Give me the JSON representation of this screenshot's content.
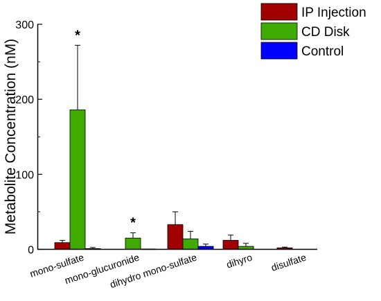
{
  "chart_data": {
    "type": "bar",
    "title": "",
    "xlabel": "",
    "ylabel": "Metabolite Concentration (nM)",
    "ylim": [
      0,
      300
    ],
    "yticks": [
      0,
      100,
      200,
      300
    ],
    "grid": false,
    "legend_position": "top-right",
    "categories": [
      "mono-sulfate",
      "mono-glucuronide",
      "dihydro mono-sulfate",
      "dihyro",
      "disulfate"
    ],
    "series": [
      {
        "name": "IP Injection",
        "color": "#a00000",
        "values": [
          9,
          0,
          33,
          12,
          2
        ],
        "errors": [
          3,
          0,
          17,
          7,
          1
        ]
      },
      {
        "name": "CD Disk",
        "color": "#3faa00",
        "values": [
          186,
          15,
          14,
          4,
          0
        ],
        "errors": [
          86,
          7,
          10,
          4,
          0
        ]
      },
      {
        "name": "Control",
        "color": "#0000ff",
        "values": [
          1,
          0.5,
          4,
          0,
          0
        ],
        "errors": [
          1.5,
          0,
          3,
          0,
          0
        ]
      }
    ],
    "annotations": [
      {
        "text": "*",
        "category": "mono-sulfate",
        "series": "CD Disk"
      },
      {
        "text": "*",
        "category": "mono-glucuronide",
        "series": "CD Disk"
      }
    ]
  }
}
